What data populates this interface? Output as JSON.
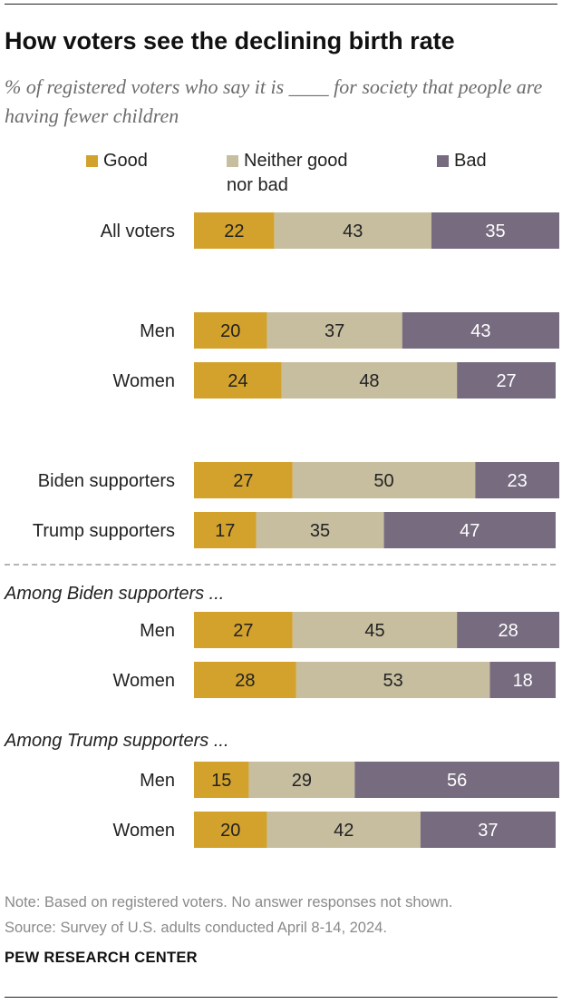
{
  "header": {
    "title": "How voters see the declining birth rate",
    "subtitle": "% of registered voters who say it is ____ for society that people are having fewer children"
  },
  "legend": {
    "good": "Good",
    "neither_line1": "Neither good",
    "neither_line2": "nor bad",
    "bad": "Bad"
  },
  "colors": {
    "good": "#d3a22d",
    "neither": "#c7bea0",
    "bad": "#776b7f"
  },
  "chart_data": {
    "type": "bar",
    "orientation": "horizontal",
    "stacked": true,
    "series": [
      {
        "name": "Good",
        "values": [
          22,
          20,
          24,
          27,
          17,
          27,
          28,
          15,
          20
        ]
      },
      {
        "name": "Neither good nor bad",
        "values": [
          43,
          37,
          48,
          50,
          35,
          45,
          53,
          29,
          42
        ]
      },
      {
        "name": "Bad",
        "values": [
          35,
          43,
          27,
          23,
          47,
          28,
          18,
          56,
          37
        ]
      }
    ],
    "categories": [
      "All voters",
      "Men",
      "Women",
      "Biden supporters",
      "Trump supporters",
      "Men",
      "Women",
      "Men",
      "Women"
    ],
    "groups": [
      "Among Biden supporters ...",
      "Among Trump supporters ..."
    ],
    "legend_position": "top",
    "grid": false
  },
  "footer": {
    "note": "Note: Based on registered voters. No answer responses not shown.",
    "source": "Source: Survey of U.S. adults conducted April 8-14, 2024.",
    "brand": "PEW RESEARCH CENTER"
  }
}
